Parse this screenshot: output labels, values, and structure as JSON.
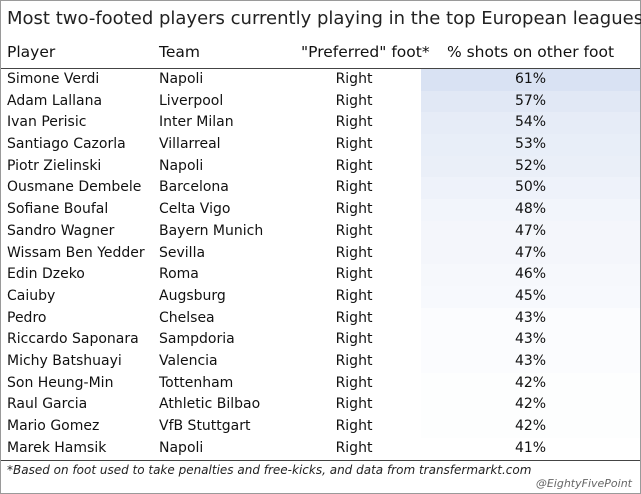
{
  "chart_data": {
    "type": "table",
    "title": "Most two-footed players currently playing in the top European leagues",
    "columns": [
      "Player",
      "Team",
      "\"Preferred\" foot*",
      "% shots on other foot"
    ],
    "rows": [
      {
        "player": "Simone Verdi",
        "team": "Napoli",
        "foot": "Right",
        "pct": "61%",
        "value": 61
      },
      {
        "player": "Adam Lallana",
        "team": "Liverpool",
        "foot": "Right",
        "pct": "57%",
        "value": 57
      },
      {
        "player": "Ivan Perisic",
        "team": "Inter Milan",
        "foot": "Right",
        "pct": "54%",
        "value": 54
      },
      {
        "player": "Santiago Cazorla",
        "team": "Villarreal",
        "foot": "Right",
        "pct": "53%",
        "value": 53
      },
      {
        "player": "Piotr Zielinski",
        "team": "Napoli",
        "foot": "Right",
        "pct": "52%",
        "value": 52
      },
      {
        "player": "Ousmane Dembele",
        "team": "Barcelona",
        "foot": "Right",
        "pct": "50%",
        "value": 50
      },
      {
        "player": "Sofiane Boufal",
        "team": "Celta Vigo",
        "foot": "Right",
        "pct": "48%",
        "value": 48
      },
      {
        "player": "Sandro Wagner",
        "team": "Bayern Munich",
        "foot": "Right",
        "pct": "47%",
        "value": 47
      },
      {
        "player": "Wissam Ben Yedder",
        "team": "Sevilla",
        "foot": "Right",
        "pct": "47%",
        "value": 47
      },
      {
        "player": "Edin Dzeko",
        "team": "Roma",
        "foot": "Right",
        "pct": "46%",
        "value": 46
      },
      {
        "player": "Caiuby",
        "team": "Augsburg",
        "foot": "Right",
        "pct": "45%",
        "value": 45
      },
      {
        "player": "Pedro",
        "team": "Chelsea",
        "foot": "Right",
        "pct": "43%",
        "value": 43
      },
      {
        "player": "Riccardo Saponara",
        "team": "Sampdoria",
        "foot": "Right",
        "pct": "43%",
        "value": 43
      },
      {
        "player": "Michy Batshuayi",
        "team": "Valencia",
        "foot": "Right",
        "pct": "43%",
        "value": 43
      },
      {
        "player": "Son Heung-Min",
        "team": "Tottenham",
        "foot": "Right",
        "pct": "42%",
        "value": 42
      },
      {
        "player": "Raul Garcia",
        "team": "Athletic Bilbao",
        "foot": "Right",
        "pct": "42%",
        "value": 42
      },
      {
        "player": "Mario Gomez",
        "team": "VfB Stuttgart",
        "foot": "Right",
        "pct": "42%",
        "value": 42
      },
      {
        "player": "Marek Hamsik",
        "team": "Napoli",
        "foot": "Right",
        "pct": "41%",
        "value": 41
      }
    ],
    "footnote": "*Based on foot used to take penalties and free-kicks, and data from transfermarkt.com",
    "credit": "@EightyFivePoint",
    "colors": {
      "heat_high": "#d9e2f3",
      "heat_low": "#ffffff",
      "rule": "#444444"
    }
  }
}
